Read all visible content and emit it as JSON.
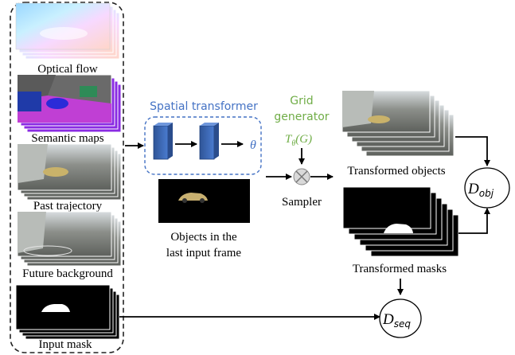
{
  "inputs": {
    "optical_flow": "Optical flow",
    "semantic_maps": "Semantic maps",
    "past_trajectory": "Past trajectory",
    "future_background": "Future background",
    "input_mask": "Input mask"
  },
  "spatial_transformer": {
    "title": "Spatial transformer",
    "theta": "θ"
  },
  "objects_caption_1": "Objects in the",
  "objects_caption_2": "last input frame",
  "grid_generator_1": "Grid",
  "grid_generator_2": "generator",
  "grid_formula": "T",
  "grid_formula_sub": "θ",
  "grid_formula_arg": "(G)",
  "sampler": "Sampler",
  "transformed_objects": "Transformed objects",
  "transformed_masks": "Transformed masks",
  "d_obj_main": "D",
  "d_obj_sub": "obj",
  "d_seq_main": "D",
  "d_seq_sub": "seq",
  "colors": {
    "accent_blue": "#4472c4",
    "accent_green": "#70ad47",
    "dashed_border": "#222222"
  }
}
